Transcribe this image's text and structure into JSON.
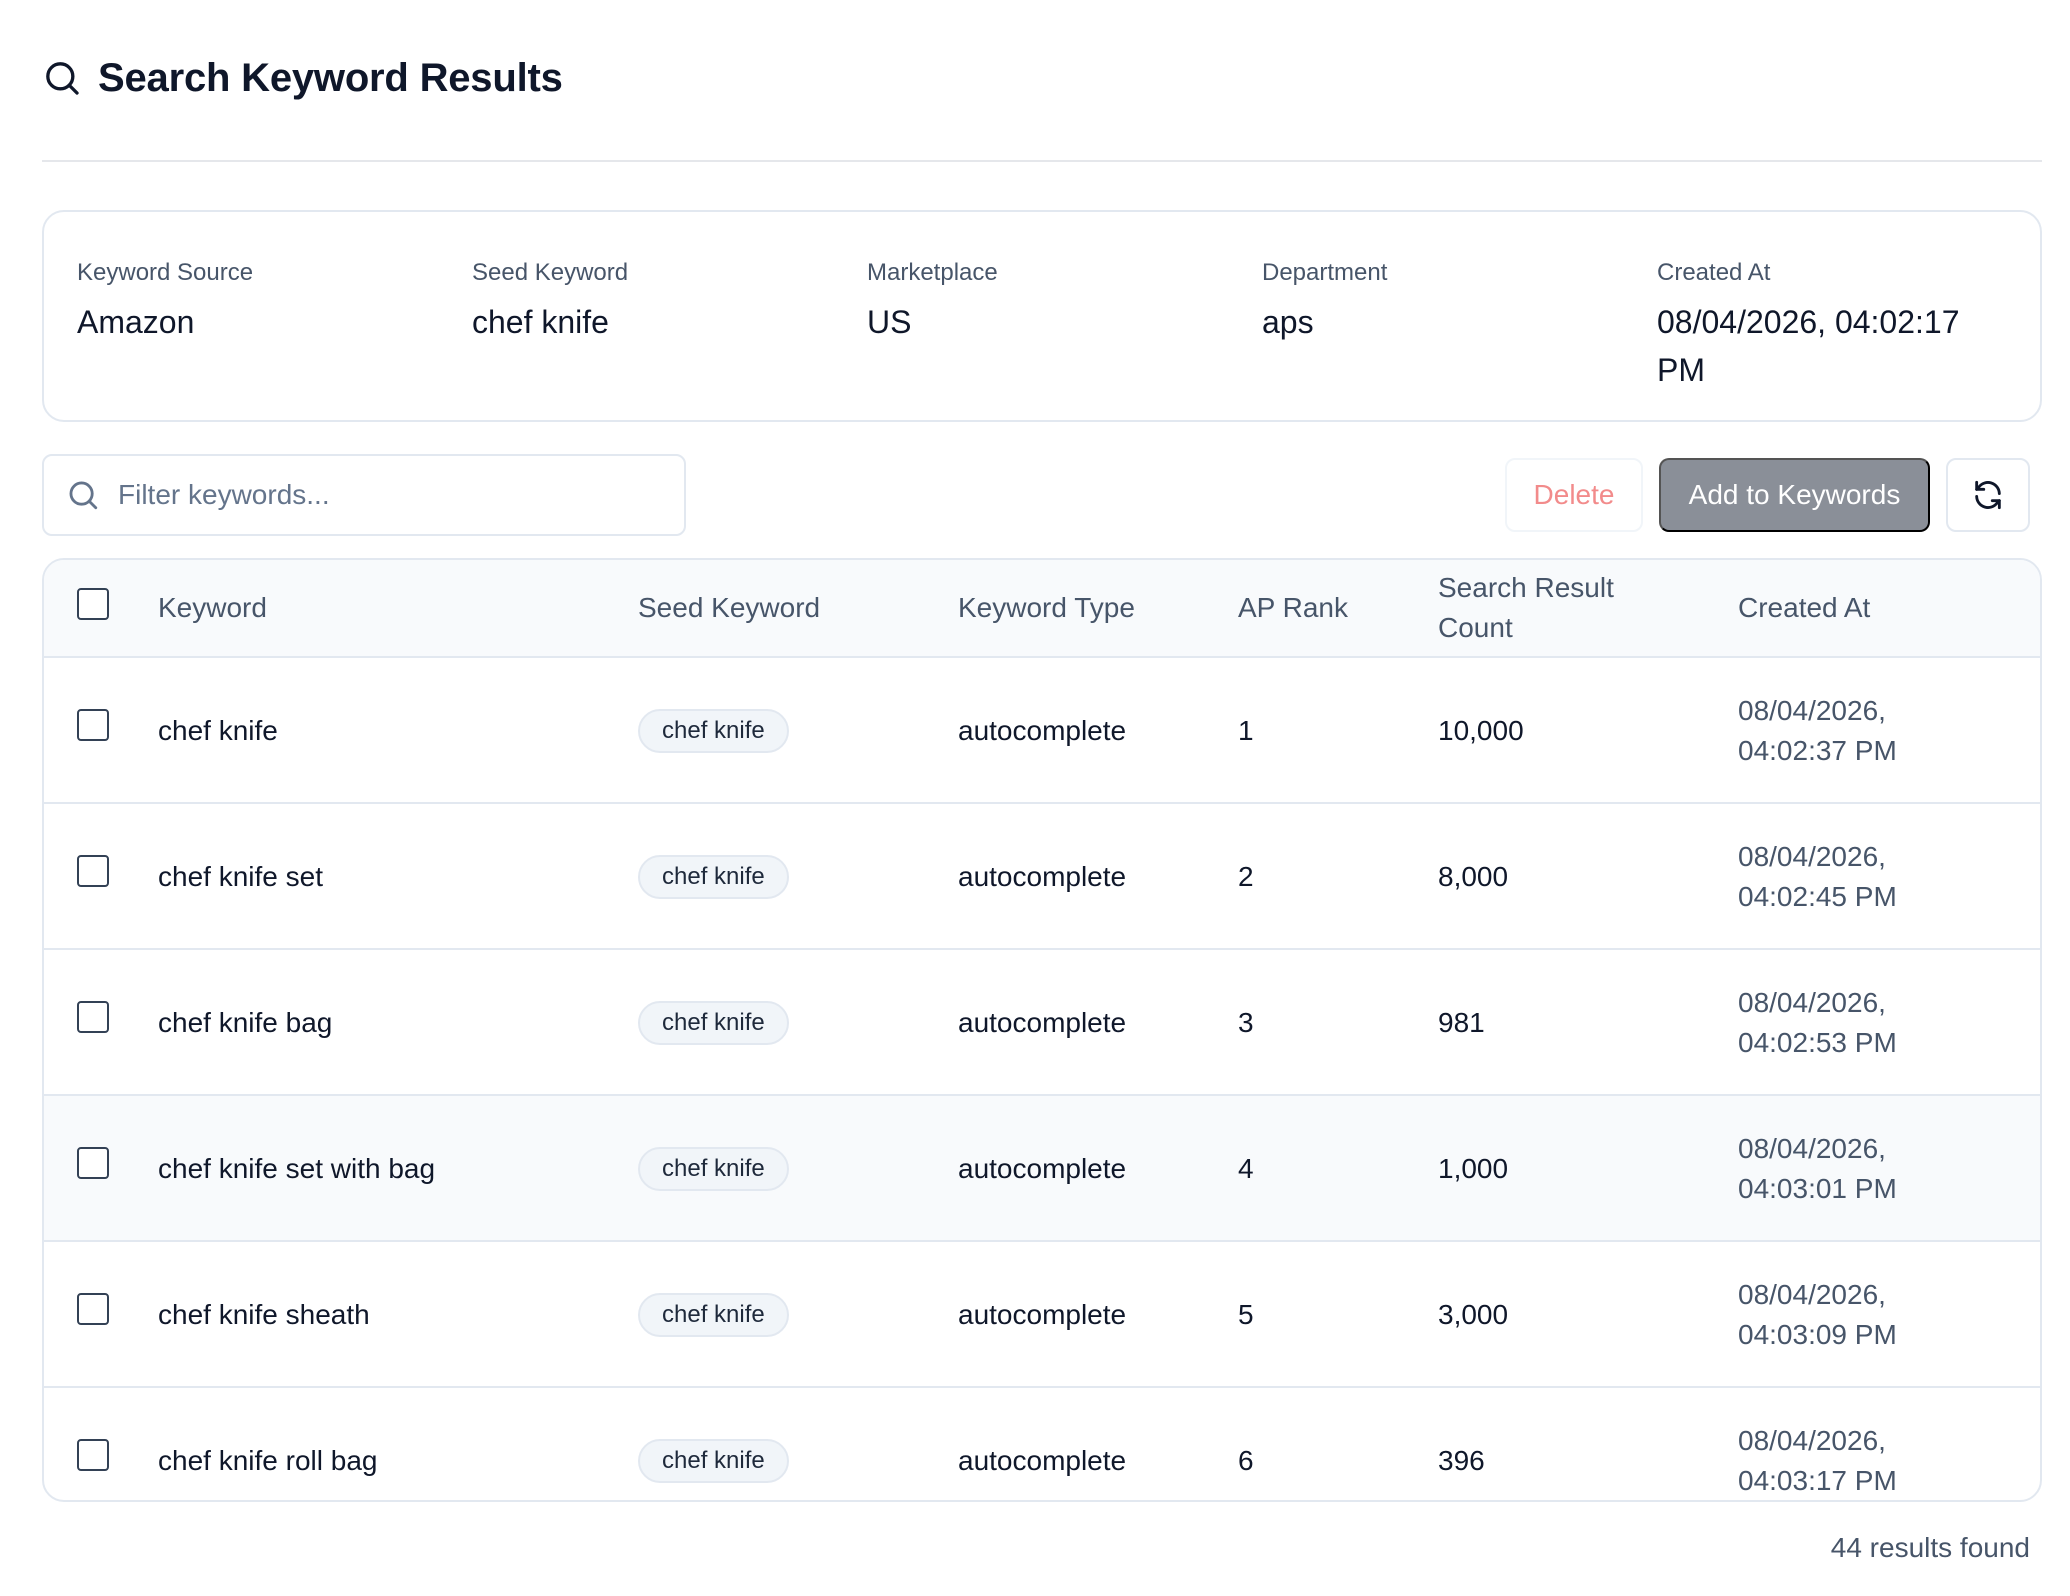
{
  "header": {
    "title": "Search Keyword Results",
    "icon": "search-icon"
  },
  "info": [
    {
      "label": "Keyword Source",
      "value": "Amazon"
    },
    {
      "label": "Seed Keyword",
      "value": "chef knife"
    },
    {
      "label": "Marketplace",
      "value": "US"
    },
    {
      "label": "Department",
      "value": "aps"
    },
    {
      "label": "Created At",
      "value": "08/04/2026, 04:02:17 PM"
    }
  ],
  "toolbar": {
    "filter_placeholder": "Filter keywords...",
    "delete_label": "Delete",
    "add_label": "Add to Keywords",
    "refresh_icon": "refresh-icon"
  },
  "table": {
    "columns": [
      "Keyword",
      "Seed Keyword",
      "Keyword Type",
      "AP Rank",
      "Search Result Count",
      "Created At"
    ],
    "rows": [
      {
        "keyword": "chef knife",
        "seed": "chef knife",
        "type": "autocomplete",
        "rank": "1",
        "count": "10,000",
        "created": "08/04/2026, 04:02:37 PM"
      },
      {
        "keyword": "chef knife set",
        "seed": "chef knife",
        "type": "autocomplete",
        "rank": "2",
        "count": "8,000",
        "created": "08/04/2026, 04:02:45 PM"
      },
      {
        "keyword": "chef knife bag",
        "seed": "chef knife",
        "type": "autocomplete",
        "rank": "3",
        "count": "981",
        "created": "08/04/2026, 04:02:53 PM"
      },
      {
        "keyword": "chef knife set with bag",
        "seed": "chef knife",
        "type": "autocomplete",
        "rank": "4",
        "count": "1,000",
        "created": "08/04/2026, 04:03:01 PM"
      },
      {
        "keyword": "chef knife sheath",
        "seed": "chef knife",
        "type": "autocomplete",
        "rank": "5",
        "count": "3,000",
        "created": "08/04/2026, 04:03:09 PM"
      },
      {
        "keyword": "chef knife roll bag",
        "seed": "chef knife",
        "type": "autocomplete",
        "rank": "6",
        "count": "396",
        "created": "08/04/2026, 04:03:17 PM"
      }
    ]
  },
  "footer": {
    "results": "44 results found"
  }
}
